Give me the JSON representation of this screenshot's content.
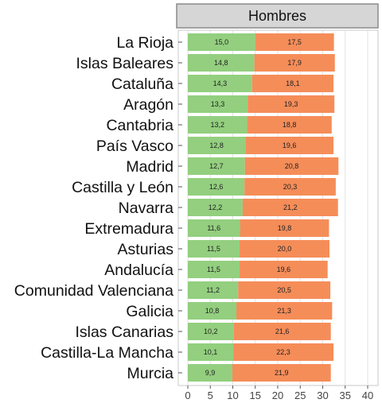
{
  "chart_data": {
    "type": "bar",
    "orientation": "horizontal",
    "stacked": true,
    "panel_title": "Hombres",
    "categories": [
      "La Rioja",
      "Islas Baleares",
      "Cataluña",
      "Aragón",
      "Cantabria",
      "País Vasco",
      "Madrid",
      "Castilla y León",
      "Navarra",
      "Extremadura",
      "Asturias",
      "Andalucía",
      "Comunidad Valenciana",
      "Galicia",
      "Islas Canarias",
      "Castilla-La Mancha",
      "Murcia"
    ],
    "series": [
      {
        "color": "#93cf7f",
        "values": [
          15.0,
          14.8,
          14.3,
          13.3,
          13.2,
          12.8,
          12.7,
          12.6,
          12.2,
          11.6,
          11.5,
          11.5,
          11.2,
          10.8,
          10.2,
          10.1,
          9.9
        ],
        "labels": [
          "15,0",
          "14,8",
          "14,3",
          "13,3",
          "13,2",
          "12,8",
          "12,7",
          "12,6",
          "12,2",
          "11,6",
          "11,5",
          "11,5",
          "11,2",
          "10,8",
          "10,2",
          "10,1",
          "9,9"
        ]
      },
      {
        "color": "#f58d59",
        "values": [
          17.5,
          17.9,
          18.1,
          19.3,
          18.8,
          19.6,
          20.8,
          20.3,
          21.2,
          19.8,
          20.0,
          19.6,
          20.5,
          21.3,
          21.6,
          22.3,
          21.9
        ],
        "labels": [
          "17,5",
          "17,9",
          "18,1",
          "19,3",
          "18,8",
          "19,6",
          "20,8",
          "20,3",
          "21,2",
          "19,8",
          "20,0",
          "19,6",
          "20,5",
          "21,3",
          "21,6",
          "22,3",
          "21,9"
        ]
      }
    ],
    "xlim": [
      0,
      42
    ],
    "xticks": [
      0,
      5,
      10,
      15,
      20,
      25,
      30,
      35,
      40
    ],
    "grid": true
  }
}
